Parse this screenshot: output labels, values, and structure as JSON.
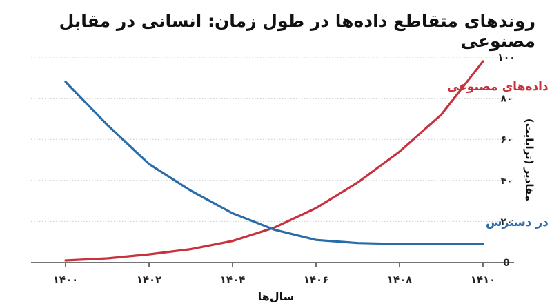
{
  "chart_data": {
    "type": "line",
    "title": "روندهای متقاطع داده‌ها در طول زمان: انسانی در مقابل مصنوعی",
    "xlabel": "سال‌ها",
    "ylabel": "مقادیر (ترابایت)",
    "x": [
      1400,
      1401,
      1402,
      1403,
      1404,
      1405,
      1406,
      1407,
      1408,
      1409,
      1410
    ],
    "x_tick_labels": [
      "۱۴۰۰",
      "۱۴۰۲",
      "۱۴۰۴",
      "۱۴۰۶",
      "۱۴۰۸",
      "۱۴۱۰"
    ],
    "y_tick_labels": [
      "0",
      "۲۰",
      "۴۰",
      "۶۰",
      "۸۰",
      "۱۰۰"
    ],
    "xlim": [
      1400,
      1410
    ],
    "ylim": [
      0,
      100
    ],
    "y_axis_side": "right",
    "grid": "horizontal dotted",
    "legend": "inline labels",
    "series": [
      {
        "name": "تولید داده‌های مصنوعی",
        "color": "#c8313e",
        "values": [
          1,
          2,
          4,
          6.5,
          10.5,
          17,
          26.5,
          39,
          54,
          72,
          98
        ]
      },
      {
        "name": "داده‌های انسانی در دسترس",
        "color": "#2a6ca8",
        "values": [
          88,
          67,
          48,
          35,
          24,
          16,
          11,
          9.5,
          9,
          9,
          9
        ]
      }
    ]
  }
}
